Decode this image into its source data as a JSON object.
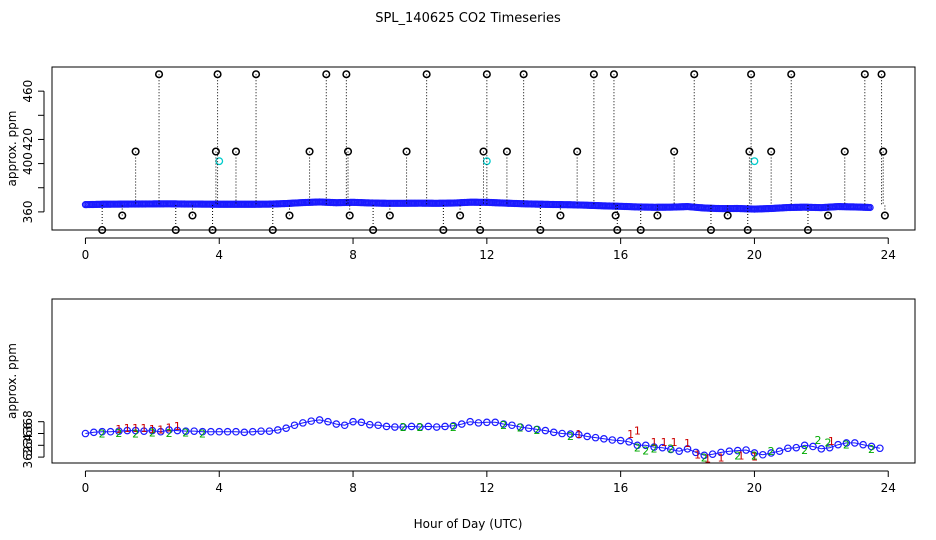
{
  "chart_data": [
    {
      "type": "scatter",
      "title": "SPL_140625  CO2 Timeseries",
      "xlabel": "",
      "ylabel": "approx. ppm",
      "xlim": [
        -1,
        24.8
      ],
      "ylim": [
        345,
        480
      ],
      "x_ticks": [
        0,
        4,
        8,
        12,
        16,
        20,
        24
      ],
      "y_ticks": [
        360,
        380,
        400,
        420,
        440,
        460
      ],
      "y_tick_labels": [
        "360",
        "",
        "400",
        "420",
        "",
        "460"
      ],
      "grid": false,
      "series": [
        {
          "color": "#1a1aff",
          "marker": "circle",
          "x": [
            0,
            0.5,
            1,
            1.5,
            2,
            2.5,
            3,
            3.5,
            4,
            4.5,
            5,
            5.5,
            6,
            6.5,
            7,
            7.5,
            8,
            8.5,
            9,
            9.5,
            10,
            10.5,
            11,
            11.5,
            12,
            12.5,
            13,
            13.5,
            14,
            14.5,
            15,
            15.5,
            16,
            16.5,
            17,
            17.5,
            18,
            18.5,
            19,
            19.5,
            20,
            20.5,
            21,
            21.5,
            22,
            22.5,
            23,
            23.5
          ],
          "y": [
            366,
            366.3,
            366.4,
            366.5,
            366.6,
            366.7,
            366.5,
            366.4,
            366.3,
            366.3,
            366.3,
            366.4,
            366.9,
            367.7,
            368.2,
            367.6,
            367.9,
            367.4,
            367.1,
            367.1,
            367.2,
            367.1,
            367.3,
            368,
            367.9,
            367.3,
            366.8,
            366.4,
            366.1,
            365.9,
            365.5,
            365,
            364.6,
            364.1,
            363.8,
            363.9,
            364.4,
            363.2,
            362.7,
            362.8,
            362.3,
            362.8,
            363.6,
            363.9,
            363.5,
            364.4,
            364.1,
            363.6
          ]
        },
        {
          "color": "#00cccc",
          "marker": "circle",
          "x": [
            4,
            12,
            20
          ],
          "y": [
            402,
            402,
            402
          ]
        },
        {
          "color": "#000000",
          "marker": "circle",
          "x": [
            0.5,
            1.1,
            1.5,
            2.2,
            2.7,
            3.2,
            3.8,
            3.9,
            3.95,
            4.5,
            5.1,
            5.6,
            6.1,
            6.7,
            7.2,
            7.8,
            7.85,
            7.9,
            8.6,
            9.1,
            9.6,
            10.2,
            10.7,
            11.2,
            11.8,
            11.9,
            12.0,
            12.6,
            13.1,
            13.6,
            14.2,
            14.7,
            15.2,
            15.8,
            15.85,
            15.9,
            16.6,
            17.1,
            17.6,
            18.2,
            18.7,
            19.2,
            19.8,
            19.85,
            19.9,
            20.5,
            21.1,
            21.6,
            22.2,
            22.7,
            23.3,
            23.8,
            23.85,
            23.9
          ],
          "y": [
            345,
            357,
            410,
            474,
            345,
            357,
            345,
            410,
            474,
            410,
            474,
            345,
            357,
            410,
            474,
            474,
            410,
            357,
            345,
            357,
            410,
            474,
            345,
            357,
            345,
            410,
            474,
            410,
            474,
            345,
            357,
            410,
            474,
            474,
            357,
            345,
            345,
            357,
            410,
            474,
            345,
            357,
            345,
            410,
            474,
            410,
            474,
            345,
            357,
            410,
            474,
            474,
            410,
            357
          ]
        }
      ]
    },
    {
      "type": "scatter",
      "title": "",
      "xlabel": "Hour of Day (UTC)",
      "ylabel": "approx. ppm",
      "xlim": [
        -1,
        24.8
      ],
      "ylim": [
        361,
        388.8
      ],
      "x_ticks": [
        0,
        4,
        8,
        12,
        16,
        20,
        24
      ],
      "y_ticks": [
        362,
        364,
        366,
        368
      ],
      "grid": false,
      "series": [
        {
          "color": "#1a1aff",
          "marker": "3",
          "x": [
            0,
            0.25,
            0.5,
            0.75,
            1,
            1.25,
            1.5,
            1.75,
            2,
            2.25,
            2.5,
            2.75,
            3,
            3.25,
            3.5,
            3.75,
            4,
            4.25,
            4.5,
            4.75,
            5,
            5.25,
            5.5,
            5.75,
            6,
            6.25,
            6.5,
            6.75,
            7,
            7.25,
            7.5,
            7.75,
            8,
            8.25,
            8.5,
            8.75,
            9,
            9.25,
            9.5,
            9.75,
            10,
            10.25,
            10.5,
            10.75,
            11,
            11.25,
            11.5,
            11.75,
            12,
            12.25,
            12.5,
            12.75,
            13,
            13.25,
            13.5,
            13.75,
            14,
            14.25,
            14.5,
            14.75,
            15,
            15.25,
            15.5,
            15.75,
            16,
            16.25,
            16.5,
            16.75,
            17,
            17.25,
            17.5,
            17.75,
            18,
            18.25,
            18.5,
            18.75,
            19,
            19.25,
            19.5,
            19.75,
            20,
            20.25,
            20.5,
            20.75,
            21,
            21.25,
            21.5,
            21.75,
            22,
            22.25,
            22.5,
            22.75,
            23,
            23.25,
            23.5,
            23.75
          ],
          "y": [
            366,
            366.2,
            366.3,
            366.3,
            366.4,
            366.5,
            366.5,
            366.4,
            366.5,
            366.3,
            366.6,
            366.5,
            366.4,
            366.4,
            366.3,
            366.3,
            366.3,
            366.3,
            366.3,
            366.2,
            366.3,
            366.4,
            366.4,
            366.6,
            366.9,
            367.4,
            367.8,
            368.1,
            368.3,
            368,
            367.6,
            367.4,
            368,
            367.9,
            367.5,
            367.4,
            367.2,
            367.1,
            367.1,
            367.2,
            367.1,
            367.2,
            367.1,
            367.2,
            367.3,
            367.6,
            368,
            367.8,
            367.9,
            367.9,
            367.6,
            367.4,
            367.1,
            366.9,
            366.7,
            366.5,
            366.2,
            366,
            365.9,
            365.8,
            365.5,
            365.3,
            365.1,
            364.9,
            364.8,
            364.6,
            364,
            364,
            363.7,
            363.6,
            363.3,
            363,
            363.4,
            362.8,
            362.3,
            362.5,
            362.8,
            363,
            363.1,
            363.2,
            362.7,
            362.4,
            362.7,
            363,
            363.5,
            363.6,
            364,
            363.8,
            363.4,
            363.6,
            364.1,
            364.4,
            364.4,
            364.1,
            363.8,
            363.5
          ]
        },
        {
          "color": "#cc0000",
          "marker": "1",
          "x": [
            1,
            1.25,
            1.5,
            1.75,
            2,
            2.25,
            2.5,
            2.75,
            14.75,
            16.3,
            16.5,
            17,
            17.3,
            17.6,
            18,
            18.3,
            18.6,
            19,
            19.6,
            20,
            22.3
          ],
          "y": [
            366.8,
            366.9,
            366.9,
            366.9,
            366.8,
            366.7,
            367,
            367.3,
            365.9,
            365.9,
            366.5,
            364.6,
            364.6,
            364.6,
            364.4,
            362.4,
            361.8,
            361.9,
            362.3,
            362.1,
            364.7
          ]
        },
        {
          "color": "#00aa00",
          "marker": "2",
          "x": [
            0.5,
            1,
            1.5,
            2,
            2.5,
            3,
            3.5,
            9.5,
            10,
            11,
            12.5,
            13,
            13.5,
            14.5,
            16.5,
            16.75,
            17,
            17.5,
            18.5,
            19.5,
            20,
            20.5,
            21.5,
            21.9,
            22.2,
            22.75,
            23.5
          ],
          "y": [
            366,
            366.1,
            366,
            366.2,
            366.1,
            366.2,
            366,
            367.1,
            367.1,
            367.1,
            367.4,
            367,
            366.6,
            365.6,
            363.6,
            363.1,
            363.5,
            363.5,
            361.9,
            362.3,
            362.3,
            363,
            363.2,
            364.9,
            364.5,
            364.1,
            363.4
          ]
        }
      ]
    }
  ]
}
